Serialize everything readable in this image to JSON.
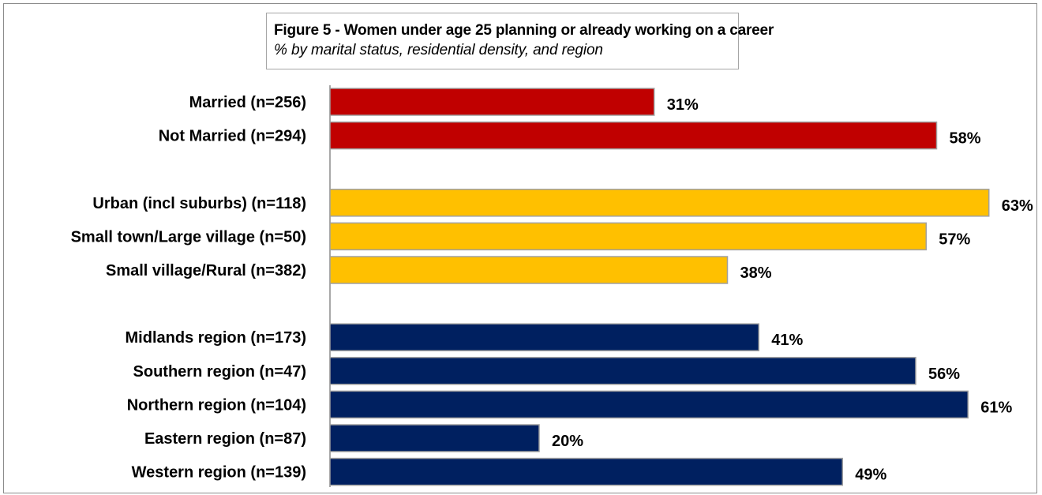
{
  "chart_data": {
    "type": "bar",
    "orientation": "horizontal",
    "title": "Figure  5 - Women under age 25 planning or already working on a career",
    "subtitle": "% by marital status, residential density, and region",
    "value_suffix": "%",
    "xlim": [
      0,
      100
    ],
    "grid": false,
    "colors": {
      "marital": "#c00000",
      "density": "#ffc000",
      "region": "#002060"
    },
    "groups": [
      {
        "group": "marital",
        "color": "#c00000",
        "items": [
          {
            "label": "Married (n=256)",
            "value": 31,
            "value_label": "31%"
          },
          {
            "label": "Not Married (n=294)",
            "value": 58,
            "value_label": "58%"
          }
        ]
      },
      {
        "group": "density",
        "color": "#ffc000",
        "items": [
          {
            "label": "Urban (incl suburbs) (n=118)",
            "value": 63,
            "value_label": "63%"
          },
          {
            "label": "Small town/Large village (n=50)",
            "value": 57,
            "value_label": "57%"
          },
          {
            "label": "Small village/Rural (n=382)",
            "value": 38,
            "value_label": "38%"
          }
        ]
      },
      {
        "group": "region",
        "color": "#002060",
        "items": [
          {
            "label": "Midlands region (n=173)",
            "value": 41,
            "value_label": "41%"
          },
          {
            "label": "Southern region (n=47)",
            "value": 56,
            "value_label": "56%"
          },
          {
            "label": "Northern region (n=104)",
            "value": 61,
            "value_label": "61%"
          },
          {
            "label": "Eastern region (n=87)",
            "value": 20,
            "value_label": "20%"
          },
          {
            "label": "Western region (n=139)",
            "value": 49,
            "value_label": "49%"
          }
        ]
      }
    ]
  }
}
